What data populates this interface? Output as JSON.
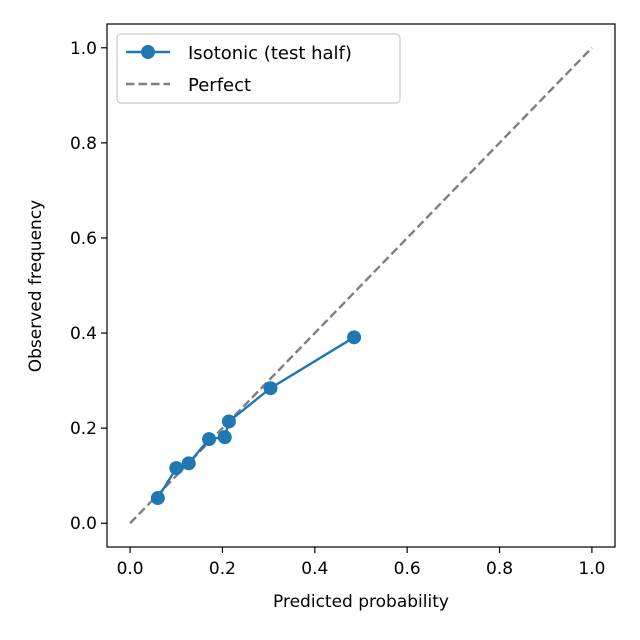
{
  "chart_data": {
    "type": "line",
    "title": "",
    "xlabel": "Predicted probability",
    "ylabel": "Observed frequency",
    "xlim": [
      -0.05,
      1.05
    ],
    "ylim": [
      -0.05,
      1.05
    ],
    "x_ticks": [
      "0.0",
      "0.2",
      "0.4",
      "0.6",
      "0.8",
      "1.0"
    ],
    "y_ticks": [
      "0.0",
      "0.2",
      "0.4",
      "0.6",
      "0.8",
      "1.0"
    ],
    "grid": false,
    "legend_position": "top-left",
    "series": [
      {
        "name": "Isotonic (test half)",
        "style": "line-with-markers",
        "color": "#1f77b4",
        "x": [
          0.06,
          0.1,
          0.127,
          0.171,
          0.205,
          0.214,
          0.304,
          0.485
        ],
        "y": [
          0.053,
          0.116,
          0.126,
          0.177,
          0.181,
          0.214,
          0.284,
          0.391
        ]
      },
      {
        "name": "Perfect",
        "style": "dashed",
        "color": "#7f7f7f",
        "x": [
          0.0,
          1.0
        ],
        "y": [
          0.0,
          1.0
        ]
      }
    ]
  }
}
